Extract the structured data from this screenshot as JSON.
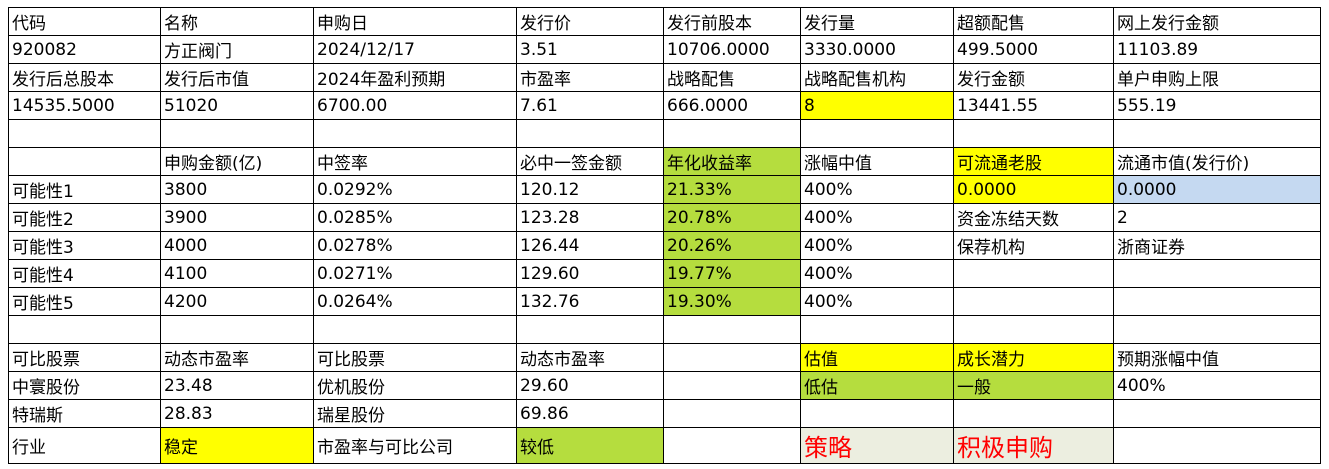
{
  "colors": {
    "yellow": "#ffff00",
    "green": "#b5dd3e",
    "blue": "#c5d9f1",
    "grey": "#eceee0",
    "red": "#ff0000"
  },
  "rows": [
    [
      {
        "t": "代码"
      },
      {
        "t": "名称"
      },
      {
        "t": "申购日"
      },
      {
        "t": "发行价"
      },
      {
        "t": "发行前股本"
      },
      {
        "t": "发行量"
      },
      {
        "t": "超额配售"
      },
      {
        "t": "网上发行金额"
      }
    ],
    [
      {
        "t": "920082"
      },
      {
        "t": "方正阀门"
      },
      {
        "t": "2024/12/17"
      },
      {
        "t": "3.51"
      },
      {
        "t": "10706.0000"
      },
      {
        "t": "3330.0000"
      },
      {
        "t": "499.5000"
      },
      {
        "t": "11103.89"
      }
    ],
    [
      {
        "t": "发行后总股本"
      },
      {
        "t": "发行后市值"
      },
      {
        "t": "2024年盈利预期"
      },
      {
        "t": "市盈率"
      },
      {
        "t": "战略配售"
      },
      {
        "t": "战略配售机构"
      },
      {
        "t": "发行金额"
      },
      {
        "t": "单户申购上限"
      }
    ],
    [
      {
        "t": "14535.5000"
      },
      {
        "t": "51020"
      },
      {
        "t": "6700.00"
      },
      {
        "t": "7.61"
      },
      {
        "t": "666.0000"
      },
      {
        "t": "8",
        "bg": "yellow"
      },
      {
        "t": "13441.55"
      },
      {
        "t": "555.19"
      }
    ],
    [
      {
        "t": ""
      },
      {
        "t": ""
      },
      {
        "t": ""
      },
      {
        "t": ""
      },
      {
        "t": ""
      },
      {
        "t": ""
      },
      {
        "t": ""
      },
      {
        "t": ""
      }
    ],
    [
      {
        "t": ""
      },
      {
        "t": "申购金额(亿)"
      },
      {
        "t": "中签率"
      },
      {
        "t": "必中一签金额"
      },
      {
        "t": "年化收益率",
        "bg": "green"
      },
      {
        "t": "涨幅中值"
      },
      {
        "t": "可流通老股",
        "bg": "yellow"
      },
      {
        "t": "流通市值(发行价)"
      }
    ],
    [
      {
        "t": "可能性1"
      },
      {
        "t": "3800"
      },
      {
        "t": "0.0292%"
      },
      {
        "t": "120.12"
      },
      {
        "t": "21.33%",
        "bg": "green"
      },
      {
        "t": "400%"
      },
      {
        "t": "0.0000",
        "bg": "yellow"
      },
      {
        "t": "0.0000",
        "bg": "blue"
      }
    ],
    [
      {
        "t": "可能性2"
      },
      {
        "t": "3900"
      },
      {
        "t": "0.0285%"
      },
      {
        "t": "123.28"
      },
      {
        "t": "20.78%",
        "bg": "green"
      },
      {
        "t": "400%"
      },
      {
        "t": "资金冻结天数"
      },
      {
        "t": "2"
      }
    ],
    [
      {
        "t": "可能性3"
      },
      {
        "t": "4000"
      },
      {
        "t": "0.0278%"
      },
      {
        "t": "126.44"
      },
      {
        "t": "20.26%",
        "bg": "green"
      },
      {
        "t": "400%"
      },
      {
        "t": "保荐机构"
      },
      {
        "t": "浙商证券"
      }
    ],
    [
      {
        "t": "可能性4"
      },
      {
        "t": "4100"
      },
      {
        "t": "0.0271%"
      },
      {
        "t": "129.60"
      },
      {
        "t": "19.77%",
        "bg": "green"
      },
      {
        "t": "400%"
      },
      {
        "t": ""
      },
      {
        "t": ""
      }
    ],
    [
      {
        "t": "可能性5"
      },
      {
        "t": "4200"
      },
      {
        "t": "0.0264%"
      },
      {
        "t": "132.76"
      },
      {
        "t": "19.30%",
        "bg": "green"
      },
      {
        "t": "400%"
      },
      {
        "t": ""
      },
      {
        "t": ""
      }
    ],
    [
      {
        "t": ""
      },
      {
        "t": ""
      },
      {
        "t": ""
      },
      {
        "t": ""
      },
      {
        "t": ""
      },
      {
        "t": ""
      },
      {
        "t": ""
      },
      {
        "t": ""
      }
    ],
    [
      {
        "t": "可比股票"
      },
      {
        "t": "动态市盈率"
      },
      {
        "t": "可比股票"
      },
      {
        "t": "动态市盈率"
      },
      {
        "t": ""
      },
      {
        "t": "估值",
        "bg": "yellow"
      },
      {
        "t": "成长潜力",
        "bg": "yellow"
      },
      {
        "t": "预期涨幅中值"
      }
    ],
    [
      {
        "t": "中寰股份"
      },
      {
        "t": "23.48"
      },
      {
        "t": "优机股份"
      },
      {
        "t": "29.60"
      },
      {
        "t": ""
      },
      {
        "t": "低估",
        "bg": "green"
      },
      {
        "t": "一般",
        "bg": "green"
      },
      {
        "t": "400%"
      }
    ],
    [
      {
        "t": "特瑞斯"
      },
      {
        "t": "28.83"
      },
      {
        "t": "瑞星股份"
      },
      {
        "t": "69.86"
      },
      {
        "t": ""
      },
      {
        "t": ""
      },
      {
        "t": ""
      },
      {
        "t": ""
      }
    ],
    [
      {
        "t": "行业"
      },
      {
        "t": "稳定",
        "bg": "yellow"
      },
      {
        "t": "市盈率与可比公司"
      },
      {
        "t": "较低",
        "bg": "green"
      },
      {
        "t": ""
      },
      {
        "t": "策略",
        "bg": "grey",
        "big": true
      },
      {
        "t": "积极申购",
        "bg": "grey",
        "big": true
      },
      {
        "t": ""
      }
    ]
  ]
}
